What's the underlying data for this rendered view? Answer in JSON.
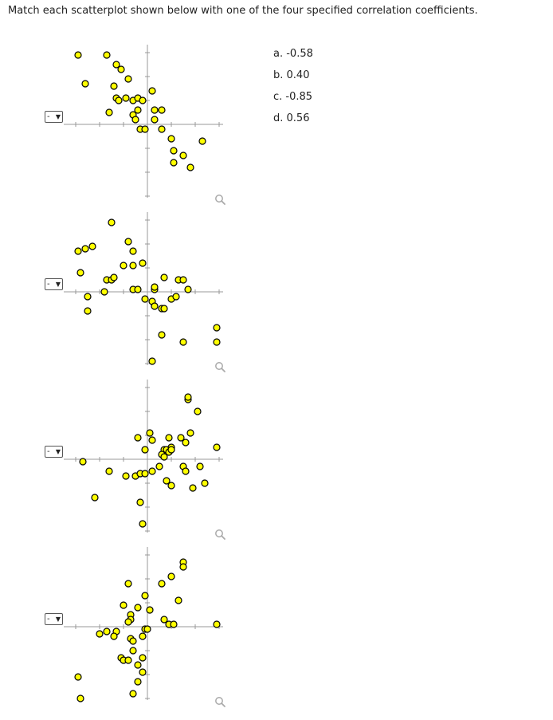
{
  "question": {
    "prompt": "Match each scatterplot shown below with one of the four specified correlation coefficients."
  },
  "choices": [
    {
      "label": "a. -0.58"
    },
    {
      "label": "b. 0.40"
    },
    {
      "label": "c. -0.85"
    },
    {
      "label": "d. 0.56"
    }
  ],
  "colors": {
    "point_fill": "#ffff00",
    "point_stroke": "#000000",
    "axis": "#999999",
    "zoom_icon": "#aaaaaa"
  },
  "selects": [
    {
      "value": "-"
    },
    {
      "value": "-"
    },
    {
      "value": "-"
    },
    {
      "value": "-"
    }
  ],
  "chart_data": [
    {
      "type": "scatter",
      "xlim": [
        -3,
        3
      ],
      "ylim": [
        -3,
        3
      ],
      "grid": false,
      "points": [
        [
          -2.9,
          2.9
        ],
        [
          -2.6,
          1.7
        ],
        [
          -1.7,
          2.9
        ],
        [
          -1.3,
          2.5
        ],
        [
          -1.1,
          2.3
        ],
        [
          -0.8,
          1.9
        ],
        [
          -1.4,
          1.6
        ],
        [
          -1.3,
          1.1
        ],
        [
          -1.2,
          1.0
        ],
        [
          -0.9,
          1.1
        ],
        [
          -1.6,
          0.5
        ],
        [
          -0.6,
          1.0
        ],
        [
          -0.4,
          1.1
        ],
        [
          -0.2,
          1.0
        ],
        [
          -0.6,
          0.4
        ],
        [
          -0.4,
          0.6
        ],
        [
          -0.5,
          0.2
        ],
        [
          0.2,
          1.4
        ],
        [
          0.3,
          0.6
        ],
        [
          0.6,
          0.6
        ],
        [
          0.3,
          0.2
        ],
        [
          -0.3,
          -0.2
        ],
        [
          -0.1,
          -0.2
        ],
        [
          0.6,
          -0.2
        ],
        [
          1.0,
          -0.6
        ],
        [
          1.1,
          -1.1
        ],
        [
          1.5,
          -1.3
        ],
        [
          1.1,
          -1.6
        ],
        [
          1.8,
          -1.8
        ],
        [
          2.3,
          -0.7
        ]
      ]
    },
    {
      "type": "scatter",
      "xlim": [
        -3,
        3
      ],
      "ylim": [
        -3,
        3
      ],
      "grid": false,
      "points": [
        [
          -1.5,
          2.9
        ],
        [
          -2.9,
          1.7
        ],
        [
          -2.6,
          1.8
        ],
        [
          -2.3,
          1.9
        ],
        [
          -0.8,
          2.1
        ],
        [
          -2.8,
          0.8
        ],
        [
          -0.6,
          1.7
        ],
        [
          -1.0,
          1.1
        ],
        [
          -0.6,
          1.1
        ],
        [
          -0.2,
          1.2
        ],
        [
          -1.7,
          0.5
        ],
        [
          -1.5,
          0.5
        ],
        [
          -1.4,
          0.6
        ],
        [
          -1.8,
          0.0
        ],
        [
          -2.5,
          -0.2
        ],
        [
          -2.5,
          -0.8
        ],
        [
          -0.6,
          0.1
        ],
        [
          -0.4,
          0.1
        ],
        [
          0.3,
          0.1
        ],
        [
          0.3,
          0.2
        ],
        [
          0.7,
          0.6
        ],
        [
          1.3,
          0.5
        ],
        [
          1.5,
          0.5
        ],
        [
          1.7,
          0.1
        ],
        [
          -0.1,
          -0.3
        ],
        [
          0.2,
          -0.4
        ],
        [
          0.3,
          -0.6
        ],
        [
          0.6,
          -0.7
        ],
        [
          0.7,
          -0.7
        ],
        [
          1.0,
          -0.3
        ],
        [
          1.2,
          -0.2
        ],
        [
          0.6,
          -1.8
        ],
        [
          1.5,
          -2.1
        ],
        [
          2.9,
          -1.5
        ],
        [
          2.9,
          -2.1
        ],
        [
          0.2,
          -2.9
        ]
      ]
    },
    {
      "type": "scatter",
      "xlim": [
        -3,
        3
      ],
      "ylim": [
        -3,
        3
      ],
      "grid": false,
      "points": [
        [
          1.7,
          2.5
        ],
        [
          1.7,
          2.6
        ],
        [
          2.1,
          2.0
        ],
        [
          0.1,
          1.1
        ],
        [
          -0.4,
          0.9
        ],
        [
          0.2,
          0.8
        ],
        [
          0.9,
          0.9
        ],
        [
          1.4,
          0.9
        ],
        [
          1.8,
          1.1
        ],
        [
          1.6,
          0.7
        ],
        [
          2.9,
          0.5
        ],
        [
          -0.1,
          0.4
        ],
        [
          0.7,
          0.4
        ],
        [
          0.8,
          0.4
        ],
        [
          0.9,
          0.3
        ],
        [
          1.0,
          0.5
        ],
        [
          1.0,
          0.4
        ],
        [
          0.6,
          0.2
        ],
        [
          0.7,
          0.1
        ],
        [
          2.2,
          -0.3
        ],
        [
          0.5,
          -0.3
        ],
        [
          1.5,
          -0.3
        ],
        [
          1.6,
          -0.5
        ],
        [
          -2.7,
          -0.1
        ],
        [
          -1.6,
          -0.5
        ],
        [
          -0.9,
          -0.7
        ],
        [
          -0.5,
          -0.7
        ],
        [
          -0.3,
          -0.6
        ],
        [
          -0.1,
          -0.6
        ],
        [
          0.2,
          -0.5
        ],
        [
          0.8,
          -0.9
        ],
        [
          1.0,
          -1.1
        ],
        [
          1.9,
          -1.2
        ],
        [
          2.4,
          -1.0
        ],
        [
          -2.2,
          -1.6
        ],
        [
          -0.3,
          -1.8
        ],
        [
          -0.2,
          -2.7
        ]
      ]
    },
    {
      "type": "scatter",
      "xlim": [
        -3,
        3
      ],
      "ylim": [
        -3,
        3
      ],
      "grid": false,
      "points": [
        [
          1.5,
          2.7
        ],
        [
          1.5,
          2.5
        ],
        [
          1.0,
          2.1
        ],
        [
          -0.8,
          1.8
        ],
        [
          0.6,
          1.8
        ],
        [
          -0.1,
          1.3
        ],
        [
          1.3,
          1.1
        ],
        [
          -1.0,
          0.9
        ],
        [
          -0.4,
          0.8
        ],
        [
          0.1,
          0.7
        ],
        [
          -0.7,
          0.5
        ],
        [
          -0.7,
          0.3
        ],
        [
          -0.8,
          0.2
        ],
        [
          0.7,
          0.3
        ],
        [
          0.9,
          0.1
        ],
        [
          1.1,
          0.1
        ],
        [
          2.9,
          0.1
        ],
        [
          -2.0,
          -0.3
        ],
        [
          -1.7,
          -0.2
        ],
        [
          -1.3,
          -0.2
        ],
        [
          -1.4,
          -0.4
        ],
        [
          -0.1,
          -0.1
        ],
        [
          0.0,
          -0.1
        ],
        [
          -0.2,
          -0.4
        ],
        [
          -0.7,
          -0.5
        ],
        [
          -0.6,
          -0.6
        ],
        [
          -0.6,
          -1.0
        ],
        [
          -1.1,
          -1.3
        ],
        [
          -1.0,
          -1.4
        ],
        [
          -0.8,
          -1.4
        ],
        [
          -0.2,
          -1.3
        ],
        [
          -0.4,
          -1.6
        ],
        [
          -0.2,
          -1.9
        ],
        [
          -0.4,
          -2.3
        ],
        [
          -0.6,
          -2.8
        ],
        [
          -2.9,
          -2.1
        ],
        [
          -2.8,
          -3.0
        ]
      ]
    }
  ]
}
